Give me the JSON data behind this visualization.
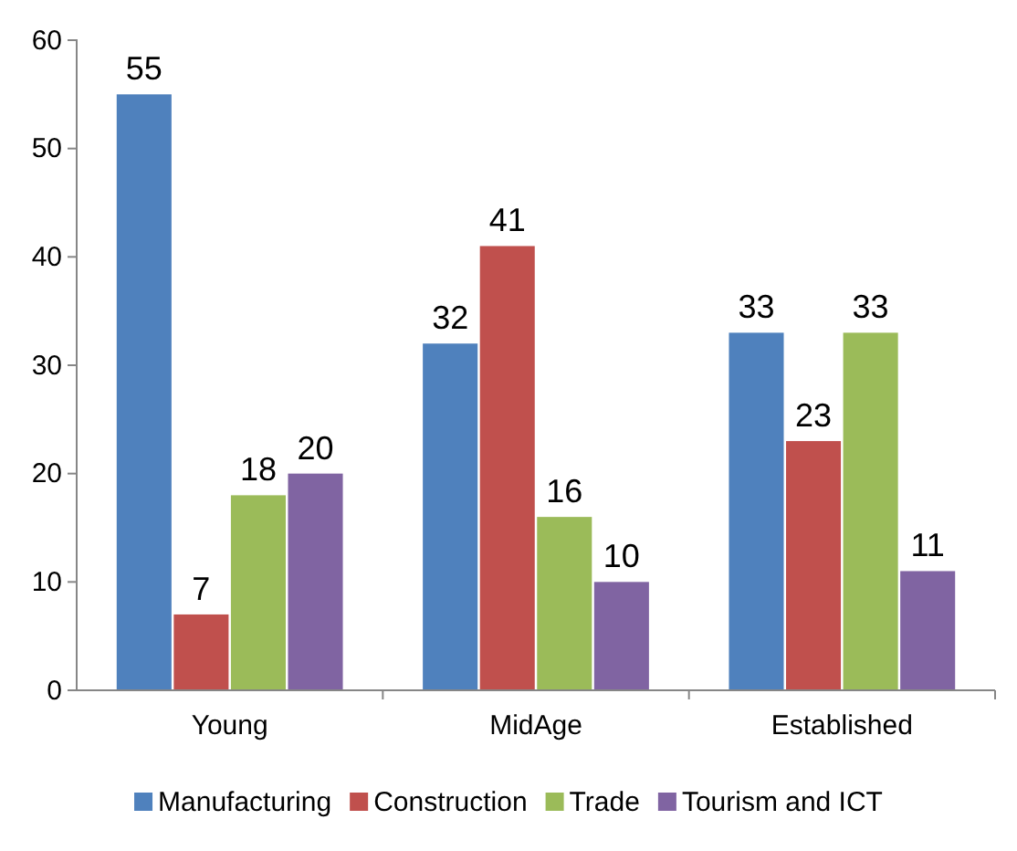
{
  "chart_data": {
    "type": "bar",
    "categories": [
      "Young",
      "MidAge",
      "Established"
    ],
    "series": [
      {
        "name": "Manufacturing",
        "color": "#4f81bd",
        "values": [
          55,
          32,
          33
        ]
      },
      {
        "name": "Construction",
        "color": "#c0504d",
        "values": [
          7,
          41,
          23
        ]
      },
      {
        "name": "Trade",
        "color": "#9bbb59",
        "values": [
          18,
          16,
          33
        ]
      },
      {
        "name": "Tourism and ICT",
        "color": "#8064a2",
        "values": [
          20,
          10,
          11
        ]
      }
    ],
    "ylim": [
      0,
      60
    ],
    "yticks": [
      0,
      10,
      20,
      30,
      40,
      50,
      60
    ],
    "data_labels": true,
    "legend": "bottom"
  }
}
